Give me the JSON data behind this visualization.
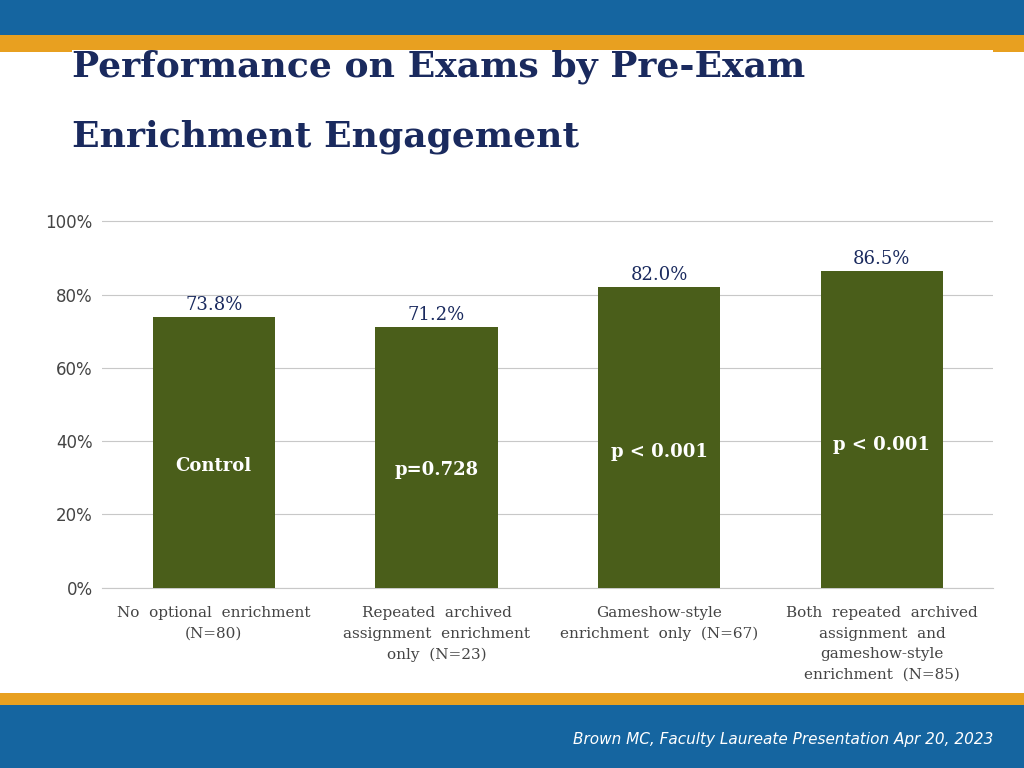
{
  "title_line1": "Performance on Exams by Pre-Exam",
  "title_line2": "Enrichment Engagement",
  "title_color": "#1a2a5e",
  "background_color": "#ffffff",
  "bar_color": "#4a5e1a",
  "bar_values": [
    73.8,
    71.2,
    82.0,
    86.5
  ],
  "bar_labels": [
    "73.8%",
    "71.2%",
    "82.0%",
    "86.5%"
  ],
  "bar_annotations": [
    "Control",
    "p=0.728",
    "p < 0.001",
    "p < 0.001"
  ],
  "x_tick_labels": [
    "No  optional  enrichment\n(N=80)",
    "Repeated  archived\nassignment  enrichment\nonly  (N=23)",
    "Gameshow-style\nenrichment  only  (N=67)",
    "Both  repeated  archived\nassignment  and\ngameshow-style\nenrichment  (N=85)"
  ],
  "yticks": [
    0,
    20,
    40,
    60,
    80,
    100
  ],
  "ytick_labels": [
    "0%",
    "20%",
    "40%",
    "60%",
    "80%",
    "100%"
  ],
  "ylim": [
    0,
    108
  ],
  "footer_text": "Brown MC, Faculty Laureate Presentation Apr 20, 2023",
  "footer_bg": "#1565a0",
  "footer_text_color": "#ffffff",
  "gold_color": "#e8a020",
  "blue_header_color": "#1565a0",
  "grid_color": "#c8c8c8",
  "tick_label_color": "#444444",
  "annotation_fontsize": 13,
  "value_label_fontsize": 13,
  "xtick_fontsize": 11,
  "ytick_fontsize": 12,
  "title_fontsize": 26
}
